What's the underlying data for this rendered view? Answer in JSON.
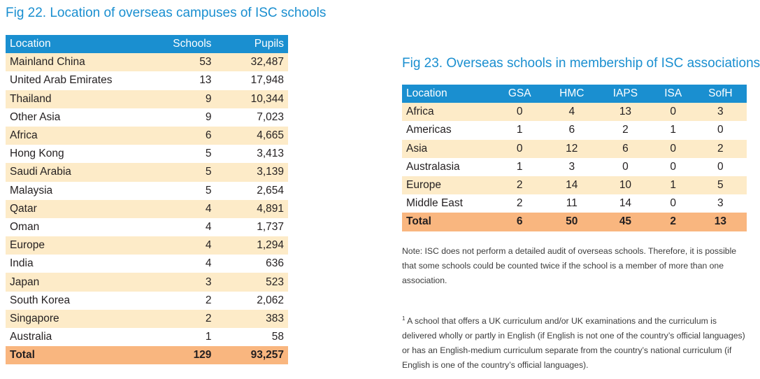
{
  "fig22": {
    "title": "Fig 22. Location of overseas campuses of ISC schools",
    "headers": [
      "Location",
      "Schools",
      "Pupils"
    ],
    "rows": [
      [
        "Mainland China",
        "53",
        "32,487"
      ],
      [
        "United Arab Emirates",
        "13",
        "17,948"
      ],
      [
        "Thailand",
        "9",
        "10,344"
      ],
      [
        "Other Asia",
        "9",
        "7,023"
      ],
      [
        "Africa",
        "6",
        "4,665"
      ],
      [
        "Hong Kong",
        "5",
        "3,413"
      ],
      [
        "Saudi Arabia",
        "5",
        "3,139"
      ],
      [
        "Malaysia",
        "5",
        "2,654"
      ],
      [
        "Qatar",
        "4",
        "4,891"
      ],
      [
        "Oman",
        "4",
        "1,737"
      ],
      [
        "Europe",
        "4",
        "1,294"
      ],
      [
        "India",
        "4",
        "636"
      ],
      [
        "Japan",
        "3",
        "523"
      ],
      [
        "South Korea",
        "2",
        "2,062"
      ],
      [
        "Singapore",
        "2",
        "383"
      ],
      [
        "Australia",
        "1",
        "58"
      ]
    ],
    "total": [
      "Total",
      "129",
      "93,257"
    ]
  },
  "fig23": {
    "title": "Fig 23. Overseas schools in membership of ISC associations",
    "headers": [
      "Location",
      "GSA",
      "HMC",
      "IAPS",
      "ISA",
      "SofH"
    ],
    "rows": [
      [
        "Africa",
        "0",
        "4",
        "13",
        "0",
        "3"
      ],
      [
        "Americas",
        "1",
        "6",
        "2",
        "1",
        "0"
      ],
      [
        "Asia",
        "0",
        "12",
        "6",
        "0",
        "2"
      ],
      [
        "Australasia",
        "1",
        "3",
        "0",
        "0",
        "0"
      ],
      [
        "Europe",
        "2",
        "14",
        "10",
        "1",
        "5"
      ],
      [
        "Middle East",
        "2",
        "11",
        "14",
        "0",
        "3"
      ]
    ],
    "total": [
      "Total",
      "6",
      "50",
      "45",
      "2",
      "13"
    ]
  },
  "note": "Note: ISC does not perform a detailed audit of overseas schools. Therefore, it is possible that some schools could be counted twice if the school is a member of more than one association.",
  "footnote": {
    "marker": "1",
    "text": " A school that offers a UK curriculum and/or UK examinations and the curriculum is delivered wholly or partly in English (if English is not one of the country’s official languages) or has an English-medium curriculum separate from the country’s national curriculum (if English is one of the country’s official languages)."
  },
  "colors": {
    "header": "#1a8fd0",
    "stripe": "#fdebc8",
    "total": "#f9b67f",
    "title": "#1a8fd0"
  }
}
